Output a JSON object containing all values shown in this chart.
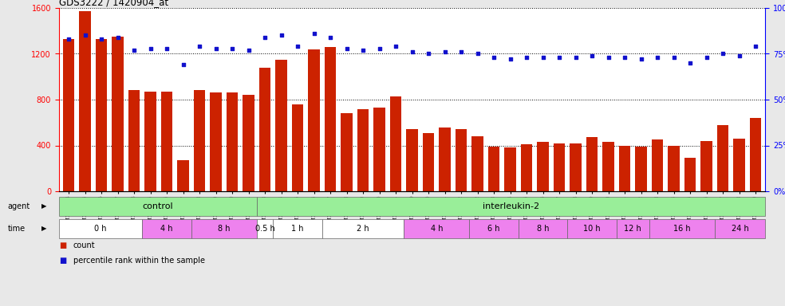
{
  "title": "GDS3222 / 1420904_at",
  "samples": [
    "GSM108334",
    "GSM108335",
    "GSM108336",
    "GSM108337",
    "GSM108338",
    "GSM183455",
    "GSM183456",
    "GSM183457",
    "GSM183458",
    "GSM183459",
    "GSM183460",
    "GSM183461",
    "GSM140923",
    "GSM140924",
    "GSM140925",
    "GSM140926",
    "GSM140927",
    "GSM140928",
    "GSM140929",
    "GSM140930",
    "GSM140931",
    "GSM108339",
    "GSM108340",
    "GSM108341",
    "GSM108342",
    "GSM140932",
    "GSM140933",
    "GSM140934",
    "GSM140935",
    "GSM140936",
    "GSM140937",
    "GSM140938",
    "GSM140939",
    "GSM140940",
    "GSM140941",
    "GSM140942",
    "GSM140943",
    "GSM140944",
    "GSM140945",
    "GSM140946",
    "GSM140947",
    "GSM140948",
    "GSM140949"
  ],
  "counts": [
    1330,
    1570,
    1330,
    1350,
    880,
    870,
    870,
    270,
    880,
    860,
    860,
    840,
    1080,
    1150,
    760,
    1240,
    1260,
    680,
    720,
    730,
    830,
    540,
    510,
    560,
    540,
    480,
    390,
    380,
    410,
    430,
    420,
    420,
    470,
    430,
    400,
    390,
    450,
    400,
    290,
    440,
    580,
    460,
    640
  ],
  "percentiles": [
    83,
    85,
    83,
    84,
    77,
    78,
    78,
    69,
    79,
    78,
    78,
    77,
    84,
    85,
    79,
    86,
    84,
    78,
    77,
    78,
    79,
    76,
    75,
    76,
    76,
    75,
    73,
    72,
    73,
    73,
    73,
    73,
    74,
    73,
    73,
    72,
    73,
    73,
    70,
    73,
    75,
    74,
    79
  ],
  "agent_groups": [
    {
      "label": "control",
      "start": 0,
      "end": 12,
      "color": "#90EE90"
    },
    {
      "label": "interleukin-2",
      "start": 12,
      "end": 43,
      "color": "#90EE90"
    }
  ],
  "time_groups": [
    {
      "label": "0 h",
      "start": 0,
      "end": 5,
      "color": "#ffffff"
    },
    {
      "label": "4 h",
      "start": 5,
      "end": 8,
      "color": "#EE82EE"
    },
    {
      "label": "8 h",
      "start": 8,
      "end": 12,
      "color": "#EE82EE"
    },
    {
      "label": "0.5 h",
      "start": 12,
      "end": 13,
      "color": "#ffffff"
    },
    {
      "label": "1 h",
      "start": 13,
      "end": 16,
      "color": "#ffffff"
    },
    {
      "label": "2 h",
      "start": 16,
      "end": 21,
      "color": "#ffffff"
    },
    {
      "label": "4 h",
      "start": 21,
      "end": 25,
      "color": "#EE82EE"
    },
    {
      "label": "6 h",
      "start": 25,
      "end": 28,
      "color": "#EE82EE"
    },
    {
      "label": "8 h",
      "start": 28,
      "end": 31,
      "color": "#EE82EE"
    },
    {
      "label": "10 h",
      "start": 31,
      "end": 34,
      "color": "#EE82EE"
    },
    {
      "label": "12 h",
      "start": 34,
      "end": 36,
      "color": "#EE82EE"
    },
    {
      "label": "16 h",
      "start": 36,
      "end": 40,
      "color": "#EE82EE"
    },
    {
      "label": "24 h",
      "start": 40,
      "end": 43,
      "color": "#EE82EE"
    }
  ],
  "bar_color": "#CC2200",
  "dot_color": "#1111CC",
  "ylim_left": [
    0,
    1600
  ],
  "ylim_right": [
    0,
    100
  ],
  "yticks_left": [
    0,
    400,
    800,
    1200,
    1600
  ],
  "yticks_right": [
    0,
    25,
    50,
    75,
    100
  ],
  "bg_color": "#e8e8e8",
  "plot_bg": "#ffffff",
  "agent_color": "#88EE88",
  "control_divider": 11.5
}
